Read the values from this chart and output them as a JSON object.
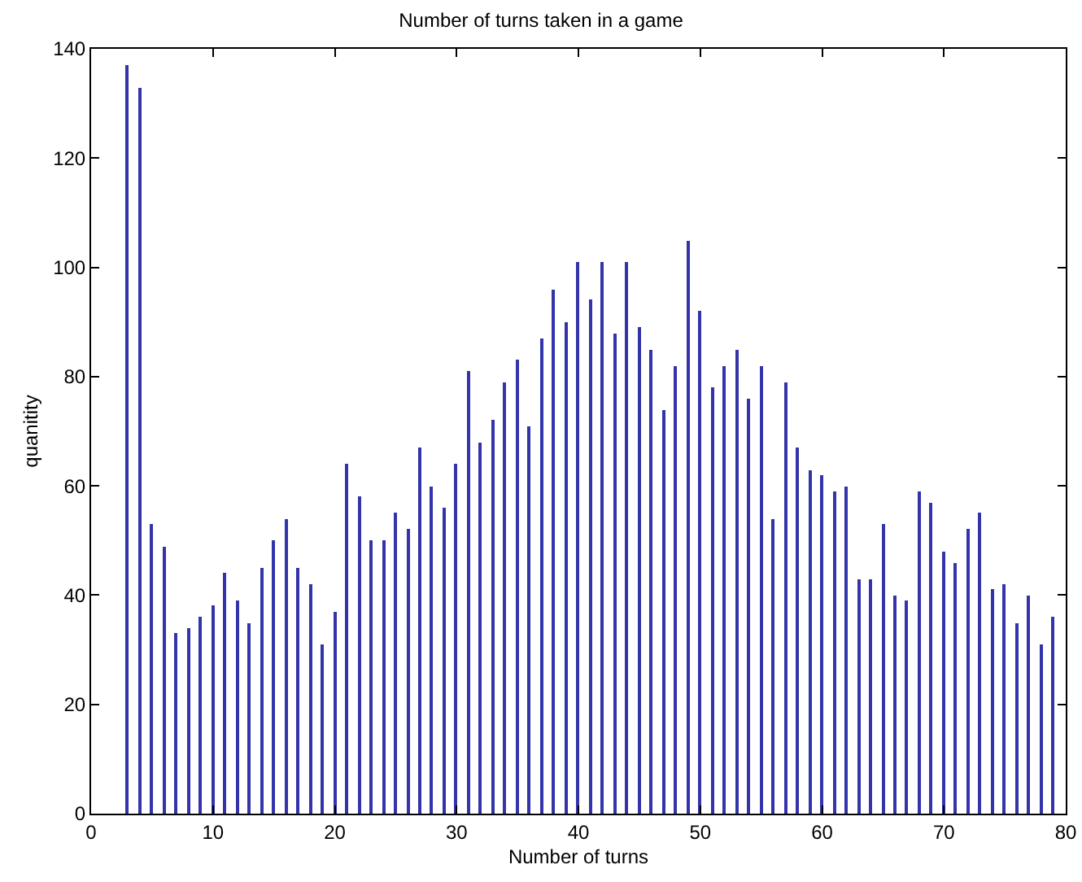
{
  "chart_data": {
    "type": "bar",
    "title": "Number of turns taken in a game",
    "xlabel": "Number of turns",
    "ylabel": "quanitity",
    "x": [
      3,
      4,
      5,
      6,
      7,
      8,
      9,
      10,
      11,
      12,
      13,
      14,
      15,
      16,
      17,
      18,
      19,
      20,
      21,
      22,
      23,
      24,
      25,
      26,
      27,
      28,
      29,
      30,
      31,
      32,
      33,
      34,
      35,
      36,
      37,
      38,
      39,
      40,
      41,
      42,
      43,
      44,
      45,
      46,
      47,
      48,
      49,
      50,
      51,
      52,
      53,
      54,
      55,
      56,
      57,
      58,
      59,
      60,
      61,
      62,
      63,
      64,
      65,
      66,
      67,
      68,
      69,
      70,
      71,
      72,
      73,
      74,
      75,
      76,
      77,
      78,
      79
    ],
    "series": [
      {
        "color": "#3333aa",
        "values": [
          137,
          133,
          53,
          49,
          33,
          34,
          36,
          38,
          44,
          39,
          35,
          45,
          50,
          54,
          45,
          42,
          31,
          37,
          64,
          58,
          50,
          50,
          55,
          52,
          67,
          60,
          56,
          64,
          81,
          68,
          72,
          79,
          83,
          71,
          87,
          96,
          90,
          101,
          94,
          101,
          88,
          101,
          89,
          85,
          74,
          82,
          105,
          92,
          78,
          82,
          85,
          76,
          82,
          54,
          79,
          67,
          63,
          62,
          59,
          60,
          43,
          43,
          53,
          40,
          39,
          59,
          57,
          48,
          46,
          52,
          55,
          41,
          42,
          35,
          40,
          31,
          36
        ]
      }
    ],
    "xlim": [
      0,
      80
    ],
    "xticks": [
      0,
      10,
      20,
      30,
      40,
      50,
      60,
      70,
      80
    ],
    "ylim": [
      0,
      140
    ],
    "yticks": [
      0,
      20,
      40,
      60,
      80,
      100,
      120,
      140
    ]
  }
}
